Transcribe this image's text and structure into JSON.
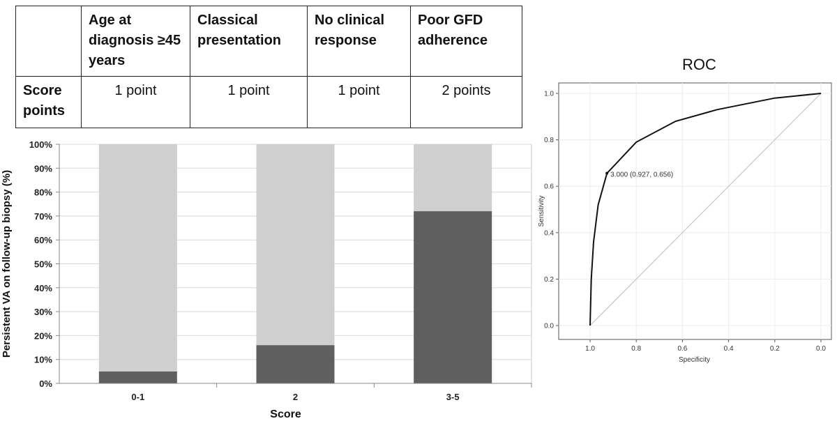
{
  "table": {
    "headers": [
      "",
      "Age at diagnosis  ≥45 years",
      "Classical presentation",
      "No clinical response",
      "Poor GFD adherence"
    ],
    "row_label": "Score points",
    "points": [
      "1 point",
      "1 point",
      "1 point",
      "2 points"
    ]
  },
  "chart_data": [
    {
      "type": "bar",
      "stacked": true,
      "categories": [
        "0-1",
        "2",
        "3-5"
      ],
      "series": [
        {
          "values": [
            5,
            16,
            72
          ],
          "color": "#5f5f5f"
        },
        {
          "values": [
            95,
            84,
            28
          ],
          "color": "#cfcfcf"
        }
      ],
      "xlabel": "Score",
      "ylabel": "Persistent VA on follow-up biopsy (%)",
      "ylim": [
        0,
        100
      ],
      "yticks": [
        "0%",
        "10%",
        "20%",
        "30%",
        "40%",
        "50%",
        "60%",
        "70%",
        "80%",
        "90%",
        "100%"
      ],
      "grid": true
    },
    {
      "type": "line",
      "title": "ROC",
      "xlabel": "Specificity",
      "ylabel": "Sensitivity",
      "x_reversed": true,
      "xlim": [
        1.0,
        0.0
      ],
      "ylim": [
        0.0,
        1.0
      ],
      "xticks": [
        "1.0",
        "0.8",
        "0.6",
        "0.4",
        "0.2",
        "0.0"
      ],
      "yticks": [
        "0.0",
        "0.2",
        "0.4",
        "0.6",
        "0.8",
        "1.0"
      ],
      "series": [
        {
          "x": [
            1.0,
            0.995,
            0.985,
            0.965,
            0.927,
            0.8,
            0.63,
            0.45,
            0.2,
            0.0
          ],
          "y": [
            0.0,
            0.2,
            0.36,
            0.52,
            0.656,
            0.79,
            0.88,
            0.93,
            0.98,
            1.0
          ],
          "color": "#111111"
        }
      ],
      "reference_line": {
        "x": [
          1.0,
          0.0
        ],
        "y": [
          0.0,
          1.0
        ],
        "color": "#bdbdbd"
      },
      "annotation": {
        "text": "3.000 (0.927, 0.656)",
        "x": 0.927,
        "y": 0.656
      },
      "grid": true
    }
  ]
}
